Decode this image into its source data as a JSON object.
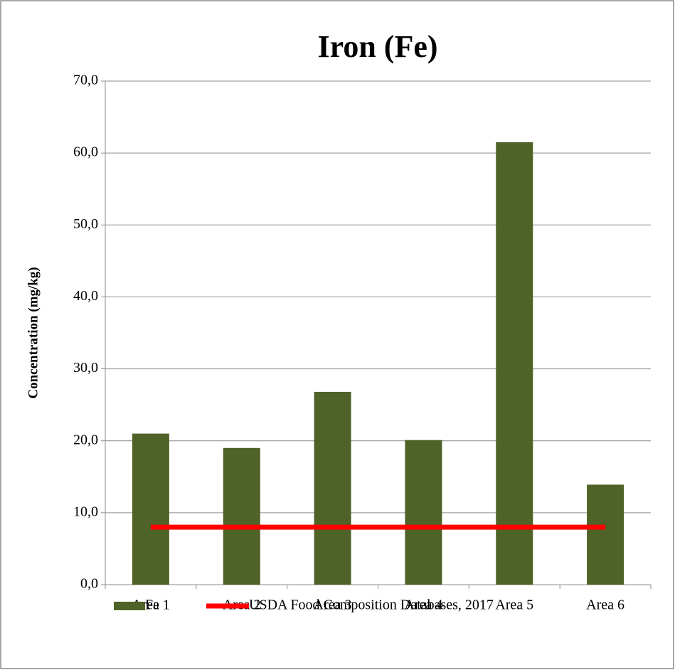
{
  "chart_data": {
    "type": "bar",
    "title": "Iron (Fe)",
    "y_label": "Concentration (mg/kg)",
    "categories": [
      "Area 1",
      "Area 2",
      "Area 3",
      "Area 4",
      "Area 5",
      "Area 6"
    ],
    "series": [
      {
        "name": "Fe",
        "type": "bar",
        "color": "#4f6228",
        "values": [
          21.0,
          19.0,
          26.8,
          20.1,
          61.5,
          13.9
        ]
      },
      {
        "name": "USDA Food Composition Databases, 2017",
        "type": "line",
        "color": "#ff0000",
        "values": [
          8.0,
          8.0,
          8.0,
          8.0,
          8.0,
          8.0
        ]
      }
    ],
    "ylim": [
      0,
      70
    ],
    "yticks": [
      {
        "value": 0,
        "label": "0,0"
      },
      {
        "value": 10,
        "label": "10,0"
      },
      {
        "value": 20,
        "label": "20,0"
      },
      {
        "value": 30,
        "label": "30,0"
      },
      {
        "value": 40,
        "label": "40,0"
      },
      {
        "value": 50,
        "label": "50,0"
      },
      {
        "value": 60,
        "label": "60,0"
      },
      {
        "value": 70,
        "label": "70,0"
      }
    ],
    "grid": true,
    "legend": "bottom"
  }
}
